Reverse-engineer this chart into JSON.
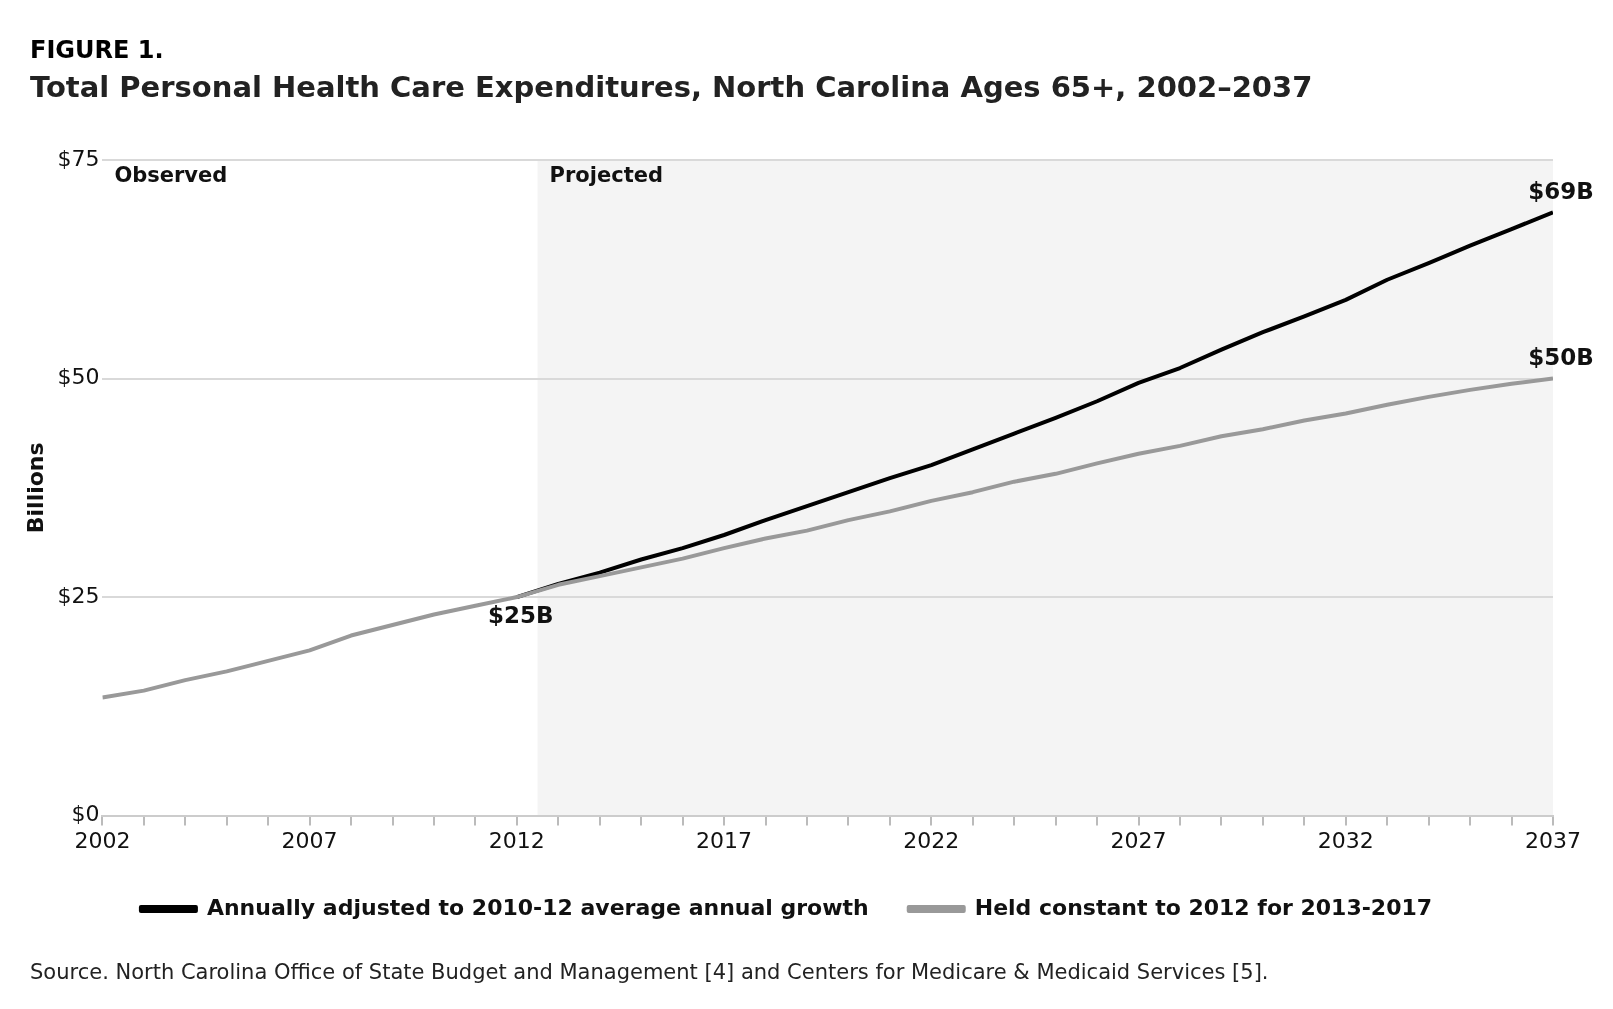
{
  "chart_data": {
    "type": "line",
    "title": "FIGURE 1.",
    "subtitle": "Total Personal Health Care Expenditures, North Carolina Ages 65+, 2002–2037",
    "ylabel": "Billions",
    "x": [
      2002,
      2003,
      2004,
      2005,
      2006,
      2007,
      2008,
      2009,
      2010,
      2011,
      2012,
      2013,
      2014,
      2015,
      2016,
      2017,
      2018,
      2019,
      2020,
      2021,
      2022,
      2023,
      2024,
      2025,
      2026,
      2027,
      2028,
      2029,
      2030,
      2031,
      2032,
      2033,
      2034,
      2035,
      2036,
      2037
    ],
    "series": [
      {
        "name": "Annually adjusted to 2010-12 average annual growth",
        "color": "#000000",
        "values": [
          null,
          null,
          null,
          null,
          null,
          null,
          null,
          null,
          null,
          null,
          25,
          26.5,
          27.8,
          29.3,
          30.6,
          32.1,
          33.8,
          35.4,
          37.0,
          38.6,
          40.1,
          41.9,
          43.7,
          45.5,
          47.4,
          49.5,
          51.2,
          53.3,
          55.3,
          57.1,
          59.0,
          61.3,
          63.2,
          65.2,
          67.1,
          69
        ],
        "value_labels": [
          null,
          null,
          null,
          null,
          null,
          null,
          null,
          null,
          null,
          null,
          null,
          null,
          null,
          null,
          null,
          null,
          null,
          null,
          null,
          null,
          null,
          null,
          null,
          null,
          null,
          null,
          null,
          null,
          null,
          null,
          null,
          null,
          null,
          null,
          null,
          "$69B"
        ]
      },
      {
        "name": "Held constant to 2012 for 2013-2017",
        "color": "#999999",
        "values": [
          13.5,
          14.3,
          15.5,
          16.5,
          17.7,
          18.9,
          20.6,
          21.8,
          23.0,
          24.0,
          25,
          26.4,
          27.4,
          28.4,
          29.4,
          30.6,
          31.7,
          32.6,
          33.8,
          34.8,
          36.0,
          37.0,
          38.2,
          39.1,
          40.3,
          41.4,
          42.3,
          43.4,
          44.2,
          45.2,
          46.0,
          47.0,
          47.9,
          48.7,
          49.4,
          50
        ],
        "value_labels": [
          null,
          null,
          null,
          null,
          null,
          null,
          null,
          null,
          null,
          null,
          "$25B",
          null,
          null,
          null,
          null,
          null,
          null,
          null,
          null,
          null,
          null,
          null,
          null,
          null,
          null,
          null,
          null,
          null,
          null,
          null,
          null,
          null,
          null,
          null,
          null,
          "$50B"
        ]
      }
    ],
    "xlim": [
      2002,
      2037
    ],
    "xticks": [
      2002,
      {
        "value": 2003,
        "label": null
      },
      {
        "value": 2004,
        "label": null
      },
      {
        "value": 2005,
        "label": null
      },
      {
        "value": 2006,
        "label": null
      },
      2007,
      {
        "value": 2008,
        "label": null
      },
      {
        "value": 2009,
        "label": null
      },
      {
        "value": 2010,
        "label": null
      },
      {
        "value": 2011,
        "label": null
      },
      2012,
      {
        "value": 2013,
        "label": null
      },
      {
        "value": 2014,
        "label": null
      },
      {
        "value": 2015,
        "label": null
      },
      {
        "value": 2016,
        "label": null
      },
      2017,
      {
        "value": 2018,
        "label": null
      },
      {
        "value": 2019,
        "label": null
      },
      {
        "value": 2020,
        "label": null
      },
      {
        "value": 2021,
        "label": null
      },
      2022,
      {
        "value": 2023,
        "label": null
      },
      {
        "value": 2024,
        "label": null
      },
      {
        "value": 2025,
        "label": null
      },
      {
        "value": 2026,
        "label": null
      },
      2027,
      {
        "value": 2028,
        "label": null
      },
      {
        "value": 2029,
        "label": null
      },
      {
        "value": 2030,
        "label": null
      },
      {
        "value": 2031,
        "label": null
      },
      2032,
      {
        "value": 2033,
        "label": null
      },
      {
        "value": 2034,
        "label": null
      },
      {
        "value": 2035,
        "label": null
      },
      {
        "value": 2036,
        "label": null
      },
      2037
    ],
    "ylim": [
      0,
      75
    ],
    "yticks": [
      {
        "value": 0,
        "label": "$0"
      },
      {
        "value": 25,
        "label": "$25"
      },
      {
        "value": 50,
        "label": "$50"
      },
      {
        "value": 75,
        "label": "$75"
      }
    ],
    "bands": [
      {
        "axis": "x",
        "from": 2012.5,
        "to": 2037,
        "label": "Projected",
        "color": "#f4f4f4"
      }
    ],
    "annotations": [
      "Observed",
      "Source. North Carolina Office of State Budget and Management [4] and Centers for Medicare & Medicaid Services [5]."
    ],
    "grid": "y",
    "legend": "bottom",
    "marker": "none",
    "line_style": "solid"
  }
}
